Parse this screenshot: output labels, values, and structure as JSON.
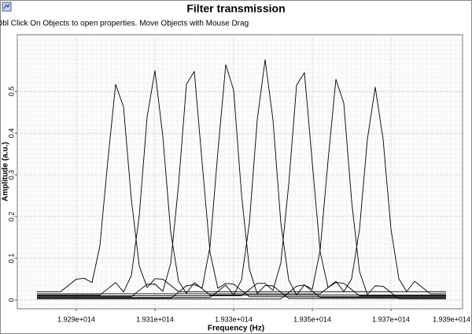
{
  "chart_data": {
    "type": "line",
    "title": "Filter transmission",
    "subtitle": "Dbl Click On Objects to open properties.  Move Objects with Mouse Drag",
    "x_label": "Frequency (Hz)",
    "y_label": "Amplitude (a.u.)",
    "xlim": [
      192750000000000.0,
      193882000000000.0
    ],
    "ylim": [
      -0.021,
      0.636
    ],
    "xticks": [
      {
        "value": 192900000000000.0,
        "label": "1.929e+014"
      },
      {
        "value": 193100000000000.0,
        "label": "1.931e+014"
      },
      {
        "value": 193300000000000.0,
        "label": "1.933e+014"
      },
      {
        "value": 193500000000000.0,
        "label": "1.935e+014"
      },
      {
        "value": 193700000000000.0,
        "label": "1.937e+014"
      },
      {
        "value": 193900000000000.0,
        "label": "1.939e+014"
      }
    ],
    "yticks": [
      0,
      0.1,
      0.2,
      0.3,
      0.4,
      0.5
    ],
    "grid": true,
    "x": [
      192800000000000.0,
      192820000000000.0,
      192840000000000.0,
      192860000000000.0,
      192880000000000.0,
      192900000000000.0,
      192920000000000.0,
      192940000000000.0,
      192960000000000.0,
      192980000000000.0,
      193000000000000.0,
      193020000000000.0,
      193040000000000.0,
      193060000000000.0,
      193080000000000.0,
      193100000000000.0,
      193120000000000.0,
      193140000000000.0,
      193160000000000.0,
      193180000000000.0,
      193200000000000.0,
      193220000000000.0,
      193240000000000.0,
      193260000000000.0,
      193280000000000.0,
      193300000000000.0,
      193320000000000.0,
      193340000000000.0,
      193360000000000.0,
      193380000000000.0,
      193400000000000.0,
      193420000000000.0,
      193440000000000.0,
      193460000000000.0,
      193480000000000.0,
      193500000000000.0,
      193520000000000.0,
      193540000000000.0,
      193560000000000.0,
      193580000000000.0,
      193600000000000.0,
      193620000000000.0,
      193640000000000.0,
      193660000000000.0,
      193680000000000.0,
      193700000000000.0,
      193720000000000.0,
      193740000000000.0,
      193760000000000.0,
      193780000000000.0,
      193800000000000.0,
      193820000000000.0,
      193840000000000.0
    ],
    "series": [
      {
        "color": "#000000",
        "values": [
          0.02,
          0.02,
          0.02,
          0.02,
          0.035,
          0.05,
          0.052,
          0.042,
          0.13,
          0.333,
          0.517,
          0.463,
          0.241,
          0.082,
          0.03,
          0.051,
          0.05,
          0.035,
          0.02,
          0.02,
          0.02,
          0.02,
          0.02,
          0.02,
          0.02,
          0.02,
          0.02,
          0.02,
          0.02,
          0.02,
          0.02,
          0.02,
          0.02,
          0.02,
          0.02,
          0.02,
          0.02,
          0.02,
          0.02,
          0.02,
          0.02,
          0.02,
          0.02,
          0.02,
          0.02,
          0.02,
          0.02,
          0.02,
          0.02,
          0.02,
          0.02,
          0.02,
          0.02
        ]
      },
      {
        "color": "#000000",
        "values": [
          0.012,
          0.012,
          0.012,
          0.012,
          0.012,
          0.012,
          0.012,
          0.012,
          0.012,
          0.027,
          0.042,
          0.019,
          0.059,
          0.202,
          0.439,
          0.55,
          0.392,
          0.163,
          0.045,
          0.016,
          0.042,
          0.027,
          0.012,
          0.012,
          0.012,
          0.012,
          0.012,
          0.012,
          0.012,
          0.012,
          0.012,
          0.012,
          0.012,
          0.012,
          0.012,
          0.012,
          0.012,
          0.012,
          0.012,
          0.012,
          0.012,
          0.012,
          0.012,
          0.012,
          0.012,
          0.012,
          0.012,
          0.012,
          0.012,
          0.012,
          0.012,
          0.012,
          0.012
        ]
      },
      {
        "color": "#000000",
        "values": [
          0.008,
          0.008,
          0.008,
          0.008,
          0.008,
          0.008,
          0.008,
          0.008,
          0.008,
          0.008,
          0.008,
          0.008,
          0.008,
          0.023,
          0.038,
          0.038,
          0.021,
          0.088,
          0.277,
          0.517,
          0.548,
          0.328,
          0.114,
          0.028,
          0.04,
          0.038,
          0.023,
          0.008,
          0.008,
          0.008,
          0.008,
          0.008,
          0.008,
          0.008,
          0.008,
          0.008,
          0.008,
          0.008,
          0.008,
          0.008,
          0.008,
          0.008,
          0.008,
          0.008,
          0.008,
          0.008,
          0.008,
          0.008,
          0.008,
          0.008,
          0.008,
          0.008,
          0.008
        ]
      },
      {
        "color": "#000000",
        "values": [
          0.004,
          0.004,
          0.004,
          0.004,
          0.004,
          0.004,
          0.004,
          0.004,
          0.004,
          0.004,
          0.004,
          0.004,
          0.004,
          0.004,
          0.004,
          0.004,
          0.004,
          0.004,
          0.019,
          0.034,
          0.037,
          0.029,
          0.128,
          0.356,
          0.564,
          0.503,
          0.253,
          0.074,
          0.015,
          0.035,
          0.034,
          0.019,
          0.004,
          0.004,
          0.004,
          0.004,
          0.004,
          0.004,
          0.004,
          0.004,
          0.004,
          0.004,
          0.004,
          0.004,
          0.004,
          0.004,
          0.004,
          0.004,
          0.004,
          0.004,
          0.004,
          0.004,
          0.004
        ]
      },
      {
        "color": "#000000",
        "values": [
          0.006,
          0.006,
          0.006,
          0.006,
          0.006,
          0.006,
          0.006,
          0.006,
          0.006,
          0.006,
          0.006,
          0.006,
          0.006,
          0.006,
          0.006,
          0.006,
          0.006,
          0.006,
          0.006,
          0.006,
          0.006,
          0.006,
          0.006,
          0.021,
          0.036,
          0.012,
          0.048,
          0.185,
          0.432,
          0.576,
          0.432,
          0.185,
          0.048,
          0.012,
          0.036,
          0.021,
          0.006,
          0.006,
          0.006,
          0.006,
          0.006,
          0.006,
          0.006,
          0.006,
          0.006,
          0.006,
          0.006,
          0.006,
          0.006,
          0.006,
          0.006,
          0.006,
          0.006
        ]
      },
      {
        "color": "#000000",
        "values": [
          0.01,
          0.01,
          0.01,
          0.01,
          0.01,
          0.01,
          0.01,
          0.01,
          0.01,
          0.01,
          0.01,
          0.01,
          0.01,
          0.01,
          0.01,
          0.01,
          0.01,
          0.01,
          0.01,
          0.01,
          0.01,
          0.01,
          0.01,
          0.01,
          0.01,
          0.01,
          0.01,
          0.025,
          0.04,
          0.04,
          0.023,
          0.089,
          0.277,
          0.515,
          0.545,
          0.328,
          0.115,
          0.03,
          0.042,
          0.04,
          0.025,
          0.01,
          0.01,
          0.01,
          0.01,
          0.01,
          0.01,
          0.01,
          0.01,
          0.01,
          0.01,
          0.01,
          0.01
        ]
      },
      {
        "color": "#000000",
        "values": [
          0.003,
          0.003,
          0.003,
          0.003,
          0.003,
          0.003,
          0.003,
          0.003,
          0.003,
          0.003,
          0.003,
          0.003,
          0.003,
          0.003,
          0.003,
          0.003,
          0.003,
          0.003,
          0.003,
          0.003,
          0.003,
          0.003,
          0.003,
          0.003,
          0.003,
          0.003,
          0.003,
          0.003,
          0.003,
          0.003,
          0.003,
          0.003,
          0.018,
          0.033,
          0.036,
          0.026,
          0.12,
          0.334,
          0.529,
          0.472,
          0.237,
          0.068,
          0.013,
          0.034,
          0.033,
          0.018,
          0.003,
          0.003,
          0.003,
          0.003,
          0.003,
          0.003,
          0.003
        ]
      },
      {
        "color": "#000000",
        "values": [
          0.015,
          0.015,
          0.015,
          0.015,
          0.015,
          0.015,
          0.015,
          0.015,
          0.015,
          0.015,
          0.015,
          0.015,
          0.015,
          0.015,
          0.015,
          0.015,
          0.015,
          0.015,
          0.015,
          0.015,
          0.015,
          0.015,
          0.015,
          0.015,
          0.015,
          0.015,
          0.015,
          0.015,
          0.015,
          0.015,
          0.015,
          0.015,
          0.015,
          0.015,
          0.015,
          0.015,
          0.015,
          0.03,
          0.045,
          0.02,
          0.051,
          0.17,
          0.385,
          0.51,
          0.385,
          0.17,
          0.051,
          0.02,
          0.045,
          0.03,
          0.015,
          0.015,
          0.015
        ]
      }
    ]
  }
}
